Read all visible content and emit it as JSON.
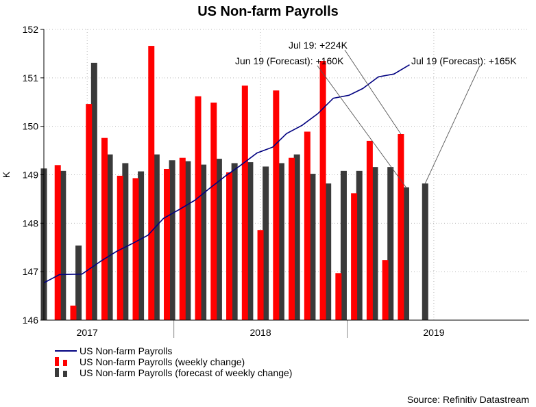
{
  "chart_data": {
    "type": "bar+line",
    "title": "US Non-farm Payrolls",
    "ylabel": "K",
    "ylim": [
      146,
      152
    ],
    "yticks": [
      146,
      147,
      148,
      149,
      150,
      151,
      152
    ],
    "x_range": [
      2016.75,
      2019.55
    ],
    "xtick_labels": [
      {
        "label": "2017",
        "x": 2017.0
      },
      {
        "label": "2018",
        "x": 2018.0
      },
      {
        "label": "2019",
        "x": 2019.0
      }
    ],
    "year_separators": [
      2017.5,
      2018.5
    ],
    "series": [
      {
        "name": "US Non-farm Payrolls",
        "type": "line",
        "color": "#000080",
        "points": [
          {
            "x": 2016.75,
            "y": 146.77
          },
          {
            "x": 2016.84,
            "y": 146.94
          },
          {
            "x": 2016.97,
            "y": 146.95
          },
          {
            "x": 2017.08,
            "y": 147.22
          },
          {
            "x": 2017.17,
            "y": 147.42
          },
          {
            "x": 2017.26,
            "y": 147.58
          },
          {
            "x": 2017.35,
            "y": 147.75
          },
          {
            "x": 2017.44,
            "y": 148.1
          },
          {
            "x": 2017.53,
            "y": 148.28
          },
          {
            "x": 2017.62,
            "y": 148.47
          },
          {
            "x": 2017.71,
            "y": 148.73
          },
          {
            "x": 2017.8,
            "y": 148.98
          },
          {
            "x": 2017.88,
            "y": 149.18
          },
          {
            "x": 2017.98,
            "y": 149.45
          },
          {
            "x": 2018.07,
            "y": 149.57
          },
          {
            "x": 2018.15,
            "y": 149.85
          },
          {
            "x": 2018.24,
            "y": 150.02
          },
          {
            "x": 2018.33,
            "y": 150.26
          },
          {
            "x": 2018.42,
            "y": 150.58
          },
          {
            "x": 2018.51,
            "y": 150.64
          },
          {
            "x": 2018.59,
            "y": 150.78
          },
          {
            "x": 2018.68,
            "y": 151.02
          },
          {
            "x": 2018.77,
            "y": 151.08
          },
          {
            "x": 2018.86,
            "y": 151.27
          }
        ]
      },
      {
        "name": "US Non-farm Payrolls (weekly change)",
        "type": "bar",
        "color": "#ff0000",
        "points": [
          {
            "x": 2016.83,
            "y": 149.2
          },
          {
            "x": 2016.92,
            "y": 146.3
          },
          {
            "x": 2017.01,
            "y": 150.46
          },
          {
            "x": 2017.1,
            "y": 149.76
          },
          {
            "x": 2017.19,
            "y": 148.98
          },
          {
            "x": 2017.28,
            "y": 148.93
          },
          {
            "x": 2017.37,
            "y": 151.66
          },
          {
            "x": 2017.46,
            "y": 149.12
          },
          {
            "x": 2017.55,
            "y": 149.35
          },
          {
            "x": 2017.64,
            "y": 150.62
          },
          {
            "x": 2017.73,
            "y": 150.49
          },
          {
            "x": 2017.82,
            "y": 149.05
          },
          {
            "x": 2017.91,
            "y": 150.84
          },
          {
            "x": 2018.0,
            "y": 147.86
          },
          {
            "x": 2018.09,
            "y": 150.74
          },
          {
            "x": 2018.18,
            "y": 149.35
          },
          {
            "x": 2018.27,
            "y": 149.89
          },
          {
            "x": 2018.36,
            "y": 151.35
          },
          {
            "x": 2018.45,
            "y": 146.97
          },
          {
            "x": 2018.54,
            "y": 148.62
          },
          {
            "x": 2018.63,
            "y": 149.7
          },
          {
            "x": 2018.72,
            "y": 147.24
          },
          {
            "x": 2018.81,
            "y": 149.84
          }
        ]
      },
      {
        "name": "US Non-farm Payrolls (forecast of weekly change)",
        "type": "bar",
        "color": "#3a3a3a",
        "points": [
          {
            "x": 2016.75,
            "y": 149.13
          },
          {
            "x": 2016.86,
            "y": 149.08
          },
          {
            "x": 2016.95,
            "y": 147.54
          },
          {
            "x": 2017.04,
            "y": 151.31
          },
          {
            "x": 2017.13,
            "y": 149.42
          },
          {
            "x": 2017.22,
            "y": 149.24
          },
          {
            "x": 2017.31,
            "y": 149.07
          },
          {
            "x": 2017.4,
            "y": 149.42
          },
          {
            "x": 2017.49,
            "y": 149.3
          },
          {
            "x": 2017.58,
            "y": 149.28
          },
          {
            "x": 2017.67,
            "y": 149.21
          },
          {
            "x": 2017.76,
            "y": 149.33
          },
          {
            "x": 2017.85,
            "y": 149.24
          },
          {
            "x": 2017.94,
            "y": 149.26
          },
          {
            "x": 2018.03,
            "y": 149.17
          },
          {
            "x": 2018.12,
            "y": 149.24
          },
          {
            "x": 2018.21,
            "y": 149.42
          },
          {
            "x": 2018.3,
            "y": 149.02
          },
          {
            "x": 2018.39,
            "y": 148.82
          },
          {
            "x": 2018.48,
            "y": 149.08
          },
          {
            "x": 2018.57,
            "y": 149.08
          },
          {
            "x": 2018.66,
            "y": 149.16
          },
          {
            "x": 2018.75,
            "y": 149.16
          },
          {
            "x": 2018.84,
            "y": 148.74
          },
          {
            "x": 2018.95,
            "y": 148.82
          }
        ]
      }
    ],
    "annotations": [
      {
        "text": "Jul 19: +224K",
        "target": {
          "x": 2018.81,
          "y": 149.84
        }
      },
      {
        "text": "Jun 19 (Forecast): +160K",
        "target": {
          "x": 2018.84,
          "y": 148.74
        }
      },
      {
        "text": "Jul 19 (Forecast): +165K",
        "target": {
          "x": 2018.95,
          "y": 148.82
        }
      }
    ]
  },
  "legend": {
    "line_label": "US Non-farm Payrolls",
    "red_label": "US Non-farm Payrolls (weekly change)",
    "dark_label": "US Non-farm Payrolls (forecast of weekly change)"
  },
  "source": "Source: Refinitiv Datastream"
}
